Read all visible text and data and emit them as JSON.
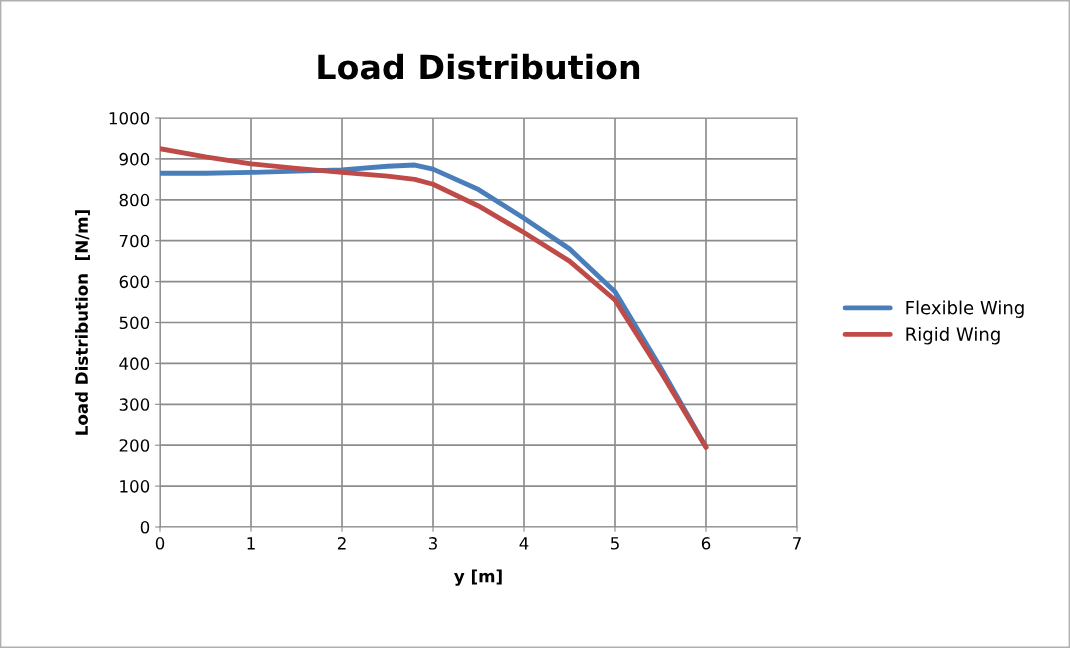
{
  "chart_data": {
    "type": "line",
    "title": "Load Distribution",
    "xlabel": "y [m]",
    "ylabel": "Load Distribution  [N/m]",
    "x": [
      0,
      0.5,
      1,
      1.5,
      2,
      2.5,
      2.8,
      3,
      3.5,
      4,
      4.5,
      5,
      5.5,
      6
    ],
    "series": [
      {
        "name": "Flexible Wing",
        "color": "#4a7ebb",
        "values": [
          865,
          865,
          867,
          870,
          873,
          882,
          885,
          875,
          825,
          755,
          680,
          575,
          390,
          195
        ]
      },
      {
        "name": "Rigid Wing",
        "color": "#be4b48",
        "values": [
          925,
          905,
          888,
          877,
          867,
          858,
          850,
          838,
          785,
          720,
          650,
          555,
          380,
          195
        ]
      }
    ],
    "xlim": [
      0,
      7
    ],
    "xticks": [
      0,
      1,
      2,
      3,
      4,
      5,
      6,
      7
    ],
    "ylim": [
      0,
      1000
    ],
    "yticks": [
      0,
      100,
      200,
      300,
      400,
      500,
      600,
      700,
      800,
      900,
      1000
    ],
    "grid": true,
    "legend": "right",
    "marker": "none",
    "line_style": "solid"
  }
}
